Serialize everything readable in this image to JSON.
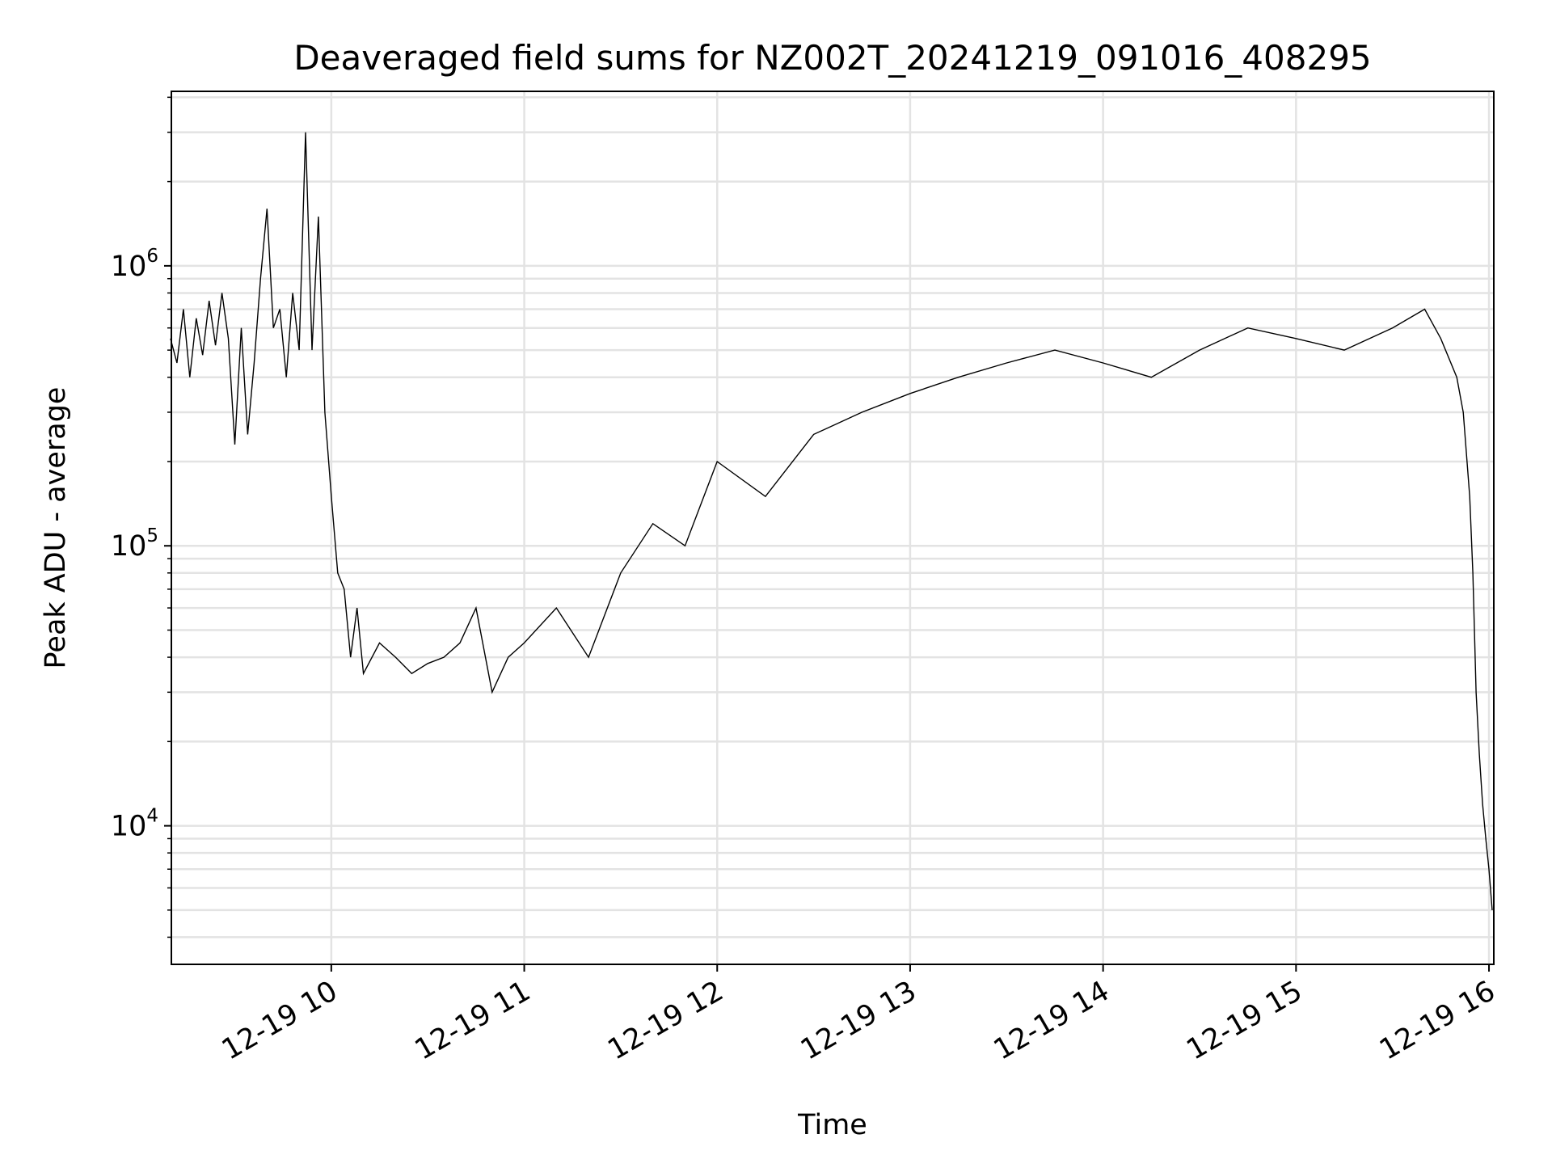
{
  "chart_data": {
    "type": "line",
    "title": "Deaveraged field sums for NZ002T_20241219_091016_408295",
    "xlabel": "Time",
    "ylabel": "Peak ADU - average",
    "y_scale": "log",
    "ylim": [
      3200,
      4200000
    ],
    "x_range": [
      "2024-12-19 09:10:16",
      "2024-12-19 16:01:30"
    ],
    "x_ticks": [
      "2024-12-19 10:00",
      "2024-12-19 11:00",
      "2024-12-19 12:00",
      "2024-12-19 13:00",
      "2024-12-19 14:00",
      "2024-12-19 15:00",
      "2024-12-19 16:00"
    ],
    "x_tick_labels": [
      "12-19 10",
      "12-19 11",
      "12-19 12",
      "12-19 13",
      "12-19 14",
      "12-19 15",
      "12-19 16"
    ],
    "y_ticks": [
      10000,
      100000,
      1000000
    ],
    "y_tick_labels": [
      {
        "base": "10",
        "exp": "4"
      },
      {
        "base": "10",
        "exp": "5"
      },
      {
        "base": "10",
        "exp": "6"
      }
    ],
    "grid": true,
    "line_color": "#000000",
    "series": [
      {
        "values": [
          [
            "2024-12-19 09:10",
            550000
          ],
          [
            "2024-12-19 09:12",
            450000
          ],
          [
            "2024-12-19 09:14",
            700000
          ],
          [
            "2024-12-19 09:16",
            400000
          ],
          [
            "2024-12-19 09:18",
            650000
          ],
          [
            "2024-12-19 09:20",
            480000
          ],
          [
            "2024-12-19 09:22",
            750000
          ],
          [
            "2024-12-19 09:24",
            520000
          ],
          [
            "2024-12-19 09:26",
            800000
          ],
          [
            "2024-12-19 09:28",
            550000
          ],
          [
            "2024-12-19 09:30",
            230000
          ],
          [
            "2024-12-19 09:32",
            600000
          ],
          [
            "2024-12-19 09:34",
            250000
          ],
          [
            "2024-12-19 09:36",
            450000
          ],
          [
            "2024-12-19 09:38",
            900000
          ],
          [
            "2024-12-19 09:40",
            1600000
          ],
          [
            "2024-12-19 09:42",
            600000
          ],
          [
            "2024-12-19 09:44",
            700000
          ],
          [
            "2024-12-19 09:46",
            400000
          ],
          [
            "2024-12-19 09:48",
            800000
          ],
          [
            "2024-12-19 09:50",
            500000
          ],
          [
            "2024-12-19 09:52",
            3000000
          ],
          [
            "2024-12-19 09:54",
            500000
          ],
          [
            "2024-12-19 09:56",
            1500000
          ],
          [
            "2024-12-19 09:58",
            300000
          ],
          [
            "2024-12-19 10:00",
            150000
          ],
          [
            "2024-12-19 10:02",
            80000
          ],
          [
            "2024-12-19 10:04",
            70000
          ],
          [
            "2024-12-19 10:06",
            40000
          ],
          [
            "2024-12-19 10:08",
            60000
          ],
          [
            "2024-12-19 10:10",
            35000
          ],
          [
            "2024-12-19 10:15",
            45000
          ],
          [
            "2024-12-19 10:20",
            40000
          ],
          [
            "2024-12-19 10:25",
            35000
          ],
          [
            "2024-12-19 10:30",
            38000
          ],
          [
            "2024-12-19 10:35",
            40000
          ],
          [
            "2024-12-19 10:40",
            45000
          ],
          [
            "2024-12-19 10:45",
            60000
          ],
          [
            "2024-12-19 10:50",
            30000
          ],
          [
            "2024-12-19 10:55",
            40000
          ],
          [
            "2024-12-19 11:00",
            45000
          ],
          [
            "2024-12-19 11:10",
            60000
          ],
          [
            "2024-12-19 11:20",
            40000
          ],
          [
            "2024-12-19 11:30",
            80000
          ],
          [
            "2024-12-19 11:40",
            120000
          ],
          [
            "2024-12-19 11:50",
            100000
          ],
          [
            "2024-12-19 12:00",
            200000
          ],
          [
            "2024-12-19 12:15",
            150000
          ],
          [
            "2024-12-19 12:30",
            250000
          ],
          [
            "2024-12-19 12:45",
            300000
          ],
          [
            "2024-12-19 13:00",
            350000
          ],
          [
            "2024-12-19 13:15",
            400000
          ],
          [
            "2024-12-19 13:30",
            450000
          ],
          [
            "2024-12-19 13:45",
            500000
          ],
          [
            "2024-12-19 14:00",
            450000
          ],
          [
            "2024-12-19 14:15",
            400000
          ],
          [
            "2024-12-19 14:30",
            500000
          ],
          [
            "2024-12-19 14:45",
            600000
          ],
          [
            "2024-12-19 15:00",
            550000
          ],
          [
            "2024-12-19 15:15",
            500000
          ],
          [
            "2024-12-19 15:30",
            600000
          ],
          [
            "2024-12-19 15:40",
            700000
          ],
          [
            "2024-12-19 15:45",
            550000
          ],
          [
            "2024-12-19 15:50",
            400000
          ],
          [
            "2024-12-19 15:52",
            300000
          ],
          [
            "2024-12-19 15:54",
            150000
          ],
          [
            "2024-12-19 15:55",
            80000
          ],
          [
            "2024-12-19 15:56",
            30000
          ],
          [
            "2024-12-19 15:57",
            18000
          ],
          [
            "2024-12-19 15:58",
            12000
          ],
          [
            "2024-12-19 15:59",
            9000
          ],
          [
            "2024-12-19 16:00",
            7000
          ],
          [
            "2024-12-19 16:01",
            5000
          ]
        ]
      }
    ]
  }
}
